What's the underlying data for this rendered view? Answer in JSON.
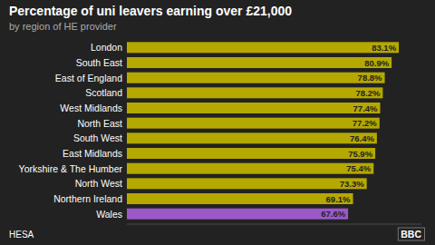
{
  "chart_data": {
    "type": "bar",
    "orientation": "horizontal",
    "title": "Percentage of uni leavers earning over £21,000",
    "subtitle": "by region of HE provider",
    "annotations": [
      "HESA",
      "BBC"
    ],
    "categories": [
      "London",
      "South East",
      "East of England",
      "Scotland",
      "West Midlands",
      "North East",
      "South West",
      "East Midlands",
      "Yorkshire & The Humber",
      "North West",
      "Northern Ireland",
      "Wales"
    ],
    "values": [
      83.1,
      80.9,
      78.8,
      78.2,
      77.4,
      77.2,
      76.4,
      75.9,
      75.4,
      73.3,
      69.1,
      67.6
    ],
    "value_labels": [
      "83.1%",
      "80.9%",
      "78.8%",
      "78.2%",
      "77.4%",
      "77.2%",
      "76.4%",
      "75.9%",
      "75.4%",
      "73.3%",
      "69.1%",
      "67.6%"
    ],
    "colors": [
      "#b5a800",
      "#b5a800",
      "#b5a800",
      "#b5a800",
      "#b5a800",
      "#b5a800",
      "#b5a800",
      "#b5a800",
      "#b5a800",
      "#b5a800",
      "#b5a800",
      "#9b59c8"
    ],
    "xlim": [
      0,
      90
    ],
    "data_labels": true,
    "tick_labels": "y",
    "grid": false
  }
}
